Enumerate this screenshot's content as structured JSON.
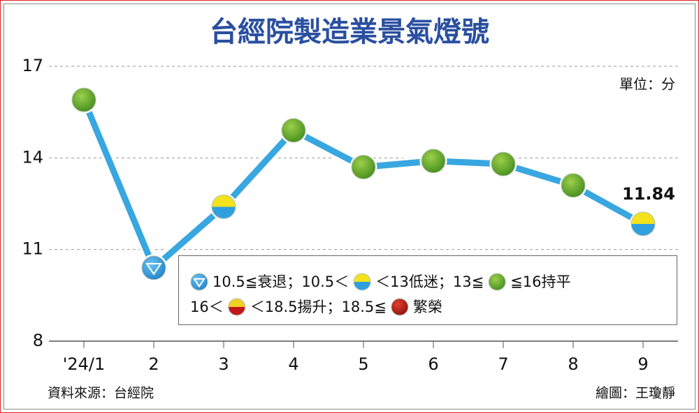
{
  "chart_data": {
    "type": "line",
    "title": "台經院製造業景氣燈號",
    "unit_label": "單位：分",
    "categories": [
      "'24/1",
      "2",
      "3",
      "4",
      "5",
      "6",
      "7",
      "8",
      "9"
    ],
    "values": [
      15.9,
      10.4,
      12.4,
      14.9,
      13.7,
      13.9,
      13.8,
      13.1,
      11.84
    ],
    "value_labels": [
      null,
      null,
      null,
      null,
      null,
      null,
      null,
      null,
      "11.84"
    ],
    "markers": [
      "green",
      "down",
      "yellow-blue",
      "green",
      "green",
      "green",
      "green",
      "green",
      "yellow-blue"
    ],
    "color": "#38a7e0",
    "ylim": [
      8,
      17
    ],
    "yticks": [
      8,
      11,
      14,
      17
    ],
    "grid": true,
    "legend": {
      "rows": [
        [
          {
            "marker": "down"
          },
          {
            "text": "10.5≦衰退；10.5＜"
          },
          {
            "marker": "yellow-blue"
          },
          {
            "text": "＜13低迷；13≦"
          },
          {
            "marker": "green"
          },
          {
            "text": "≦16持平"
          }
        ],
        [
          {
            "text": "16＜"
          },
          {
            "marker": "red-yellow"
          },
          {
            "text": "＜18.5揚升；18.5≦"
          },
          {
            "marker": "red"
          },
          {
            "text": "繁榮"
          }
        ]
      ]
    },
    "source": "資料來源：台經院",
    "credit": "繪圖：王瓊靜"
  }
}
